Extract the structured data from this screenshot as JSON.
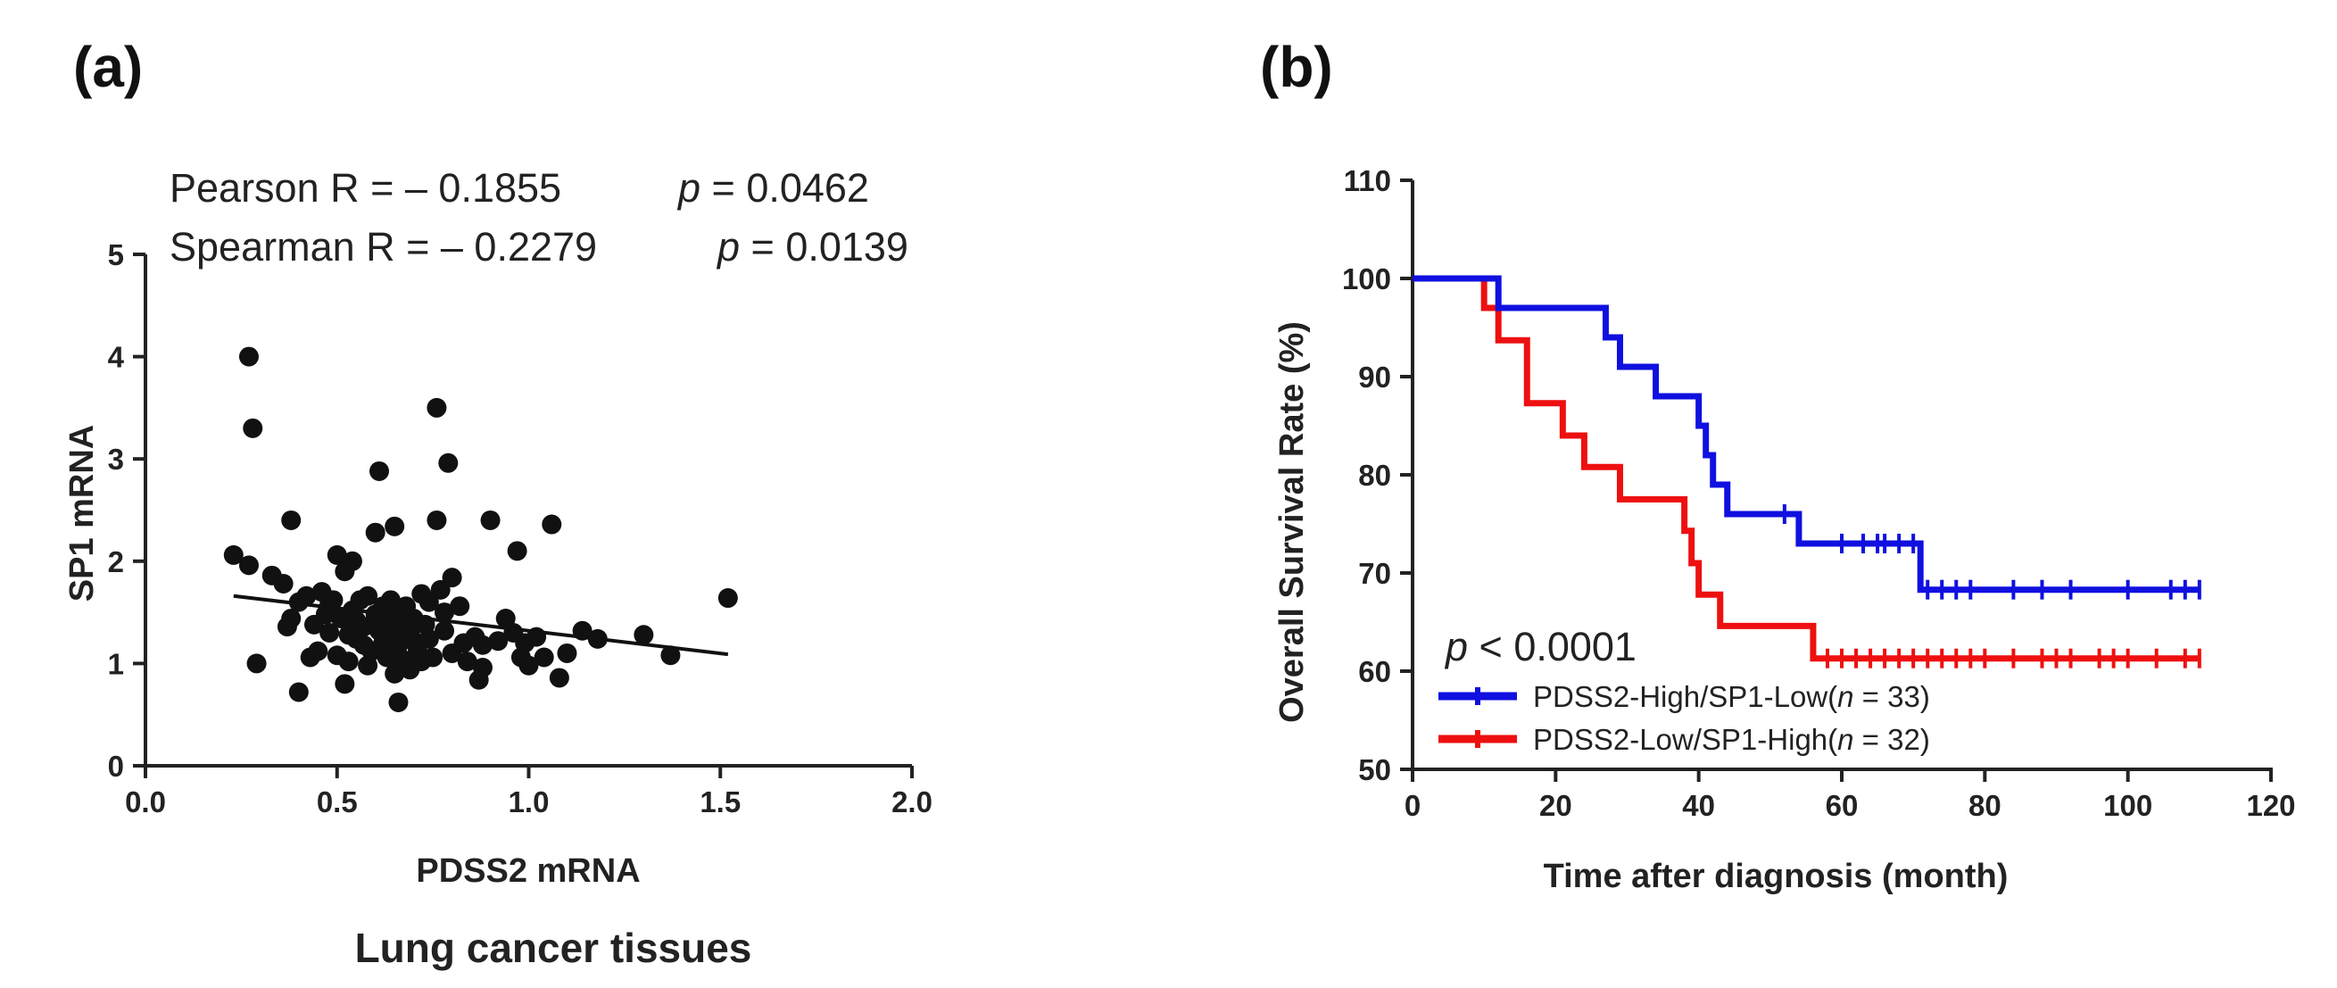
{
  "chart_data": [
    {
      "panel_label": "(a)",
      "type": "scatter",
      "xlabel": "PDSS2 mRNA",
      "ylabel": "SP1 mRNA",
      "caption": "Lung cancer tissues",
      "xlim": [
        0.0,
        2.0
      ],
      "ylim": [
        0,
        5
      ],
      "x_ticks": [
        "0.0",
        "0.5",
        "1.0",
        "1.5",
        "2.0"
      ],
      "y_ticks": [
        "0",
        "1",
        "2",
        "3",
        "4",
        "5"
      ],
      "stats": {
        "pearson_label": "Pearson R = –  0.1855",
        "pearson_p_symbol": "p",
        "pearson_p_value": " = 0.0462",
        "spearman_label": "Spearman R = –  0.2279",
        "spearman_p_symbol": "p",
        "spearman_p_value": " = 0.0139"
      },
      "regression": {
        "x": [
          0.23,
          1.52
        ],
        "y": [
          1.66,
          1.09
        ]
      },
      "points": [
        [
          0.27,
          4.0
        ],
        [
          0.28,
          3.3
        ],
        [
          0.23,
          2.06
        ],
        [
          0.27,
          1.96
        ],
        [
          0.29,
          1.0
        ],
        [
          0.33,
          1.86
        ],
        [
          0.36,
          1.78
        ],
        [
          0.38,
          2.4
        ],
        [
          0.37,
          1.36
        ],
        [
          0.38,
          1.44
        ],
        [
          0.4,
          1.6
        ],
        [
          0.4,
          0.72
        ],
        [
          0.42,
          1.66
        ],
        [
          0.43,
          1.06
        ],
        [
          0.44,
          1.38
        ],
        [
          0.45,
          1.12
        ],
        [
          0.46,
          1.7
        ],
        [
          0.47,
          1.48
        ],
        [
          0.48,
          1.3
        ],
        [
          0.48,
          1.58
        ],
        [
          0.49,
          1.62
        ],
        [
          0.5,
          1.08
        ],
        [
          0.5,
          2.06
        ],
        [
          0.51,
          1.44
        ],
        [
          0.52,
          1.9
        ],
        [
          0.52,
          0.8
        ],
        [
          0.53,
          1.28
        ],
        [
          0.53,
          1.02
        ],
        [
          0.54,
          2.0
        ],
        [
          0.54,
          1.52
        ],
        [
          0.55,
          1.24
        ],
        [
          0.55,
          1.42
        ],
        [
          0.56,
          1.62
        ],
        [
          0.57,
          1.18
        ],
        [
          0.57,
          1.36
        ],
        [
          0.58,
          1.66
        ],
        [
          0.58,
          0.98
        ],
        [
          0.59,
          1.12
        ],
        [
          0.6,
          1.48
        ],
        [
          0.6,
          2.28
        ],
        [
          0.61,
          1.32
        ],
        [
          0.61,
          2.88
        ],
        [
          0.62,
          1.56
        ],
        [
          0.62,
          1.2
        ],
        [
          0.63,
          1.06
        ],
        [
          0.63,
          1.4
        ],
        [
          0.64,
          1.26
        ],
        [
          0.64,
          1.62
        ],
        [
          0.65,
          2.34
        ],
        [
          0.65,
          0.9
        ],
        [
          0.66,
          1.46
        ],
        [
          0.66,
          1.18
        ],
        [
          0.66,
          0.62
        ],
        [
          0.67,
          1.36
        ],
        [
          0.67,
          1.04
        ],
        [
          0.68,
          1.56
        ],
        [
          0.69,
          1.3
        ],
        [
          0.69,
          0.94
        ],
        [
          0.7,
          1.22
        ],
        [
          0.7,
          1.44
        ],
        [
          0.71,
          1.12
        ],
        [
          0.72,
          1.68
        ],
        [
          0.72,
          1.02
        ],
        [
          0.73,
          1.38
        ],
        [
          0.74,
          1.6
        ],
        [
          0.74,
          1.24
        ],
        [
          0.75,
          1.06
        ],
        [
          0.76,
          2.4
        ],
        [
          0.76,
          3.5
        ],
        [
          0.77,
          1.72
        ],
        [
          0.78,
          1.5
        ],
        [
          0.78,
          1.32
        ],
        [
          0.79,
          2.96
        ],
        [
          0.8,
          1.84
        ],
        [
          0.8,
          1.1
        ],
        [
          0.82,
          1.56
        ],
        [
          0.83,
          1.2
        ],
        [
          0.84,
          1.02
        ],
        [
          0.86,
          1.26
        ],
        [
          0.87,
          0.84
        ],
        [
          0.88,
          1.18
        ],
        [
          0.88,
          0.96
        ],
        [
          0.9,
          2.4
        ],
        [
          0.92,
          1.22
        ],
        [
          0.94,
          1.44
        ],
        [
          0.96,
          1.3
        ],
        [
          0.97,
          2.1
        ],
        [
          0.98,
          1.06
        ],
        [
          0.99,
          1.2
        ],
        [
          1.0,
          0.98
        ],
        [
          1.02,
          1.26
        ],
        [
          1.04,
          1.06
        ],
        [
          1.06,
          2.36
        ],
        [
          1.08,
          0.86
        ],
        [
          1.1,
          1.1
        ],
        [
          1.14,
          1.32
        ],
        [
          1.18,
          1.24
        ],
        [
          1.3,
          1.28
        ],
        [
          1.37,
          1.08
        ],
        [
          1.52,
          1.64
        ]
      ]
    },
    {
      "panel_label": "(b)",
      "type": "line",
      "xlabel": "Time after diagnosis (month)",
      "ylabel": "Overall Survival Rate (%)",
      "xlim": [
        0,
        120
      ],
      "ylim": [
        50,
        110
      ],
      "x_ticks": [
        "0",
        "20",
        "40",
        "60",
        "80",
        "100",
        "120"
      ],
      "y_ticks": [
        "50",
        "60",
        "70",
        "80",
        "90",
        "100",
        "110"
      ],
      "p_annotation": {
        "symbol": "p",
        "value": " < 0.0001"
      },
      "series": [
        {
          "name": "PDSS2-High/SP1-Low(",
          "n_symbol": "n",
          "n_value": " = 33)",
          "color": "#1010e0",
          "steps": [
            [
              0,
              100
            ],
            [
              12,
              97
            ],
            [
              27,
              94
            ],
            [
              29,
              91
            ],
            [
              34,
              88
            ],
            [
              40,
              85
            ],
            [
              41,
              82
            ],
            [
              42,
              79
            ],
            [
              44,
              76
            ],
            [
              54,
              73
            ],
            [
              71,
              68.3
            ]
          ],
          "end_x": 110,
          "censor_x": [
            52,
            60,
            63,
            65,
            66,
            68,
            70,
            72,
            74,
            76,
            78,
            84,
            88,
            92,
            100,
            106,
            108,
            110
          ]
        },
        {
          "name": "PDSS2-Low/SP1-High(",
          "n_symbol": "n",
          "n_value": " = 32)",
          "color": "#ee1010",
          "steps": [
            [
              0,
              100
            ],
            [
              10,
              97
            ],
            [
              12,
              93.7
            ],
            [
              16,
              87.3
            ],
            [
              21,
              84
            ],
            [
              24,
              80.8
            ],
            [
              29,
              77.5
            ],
            [
              38,
              74.3
            ],
            [
              39,
              71
            ],
            [
              40,
              67.8
            ],
            [
              43,
              64.6
            ],
            [
              56,
              61.3
            ]
          ],
          "end_x": 110,
          "censor_x": [
            58,
            60,
            62,
            64,
            66,
            68,
            70,
            72,
            74,
            76,
            78,
            80,
            84,
            88,
            90,
            92,
            96,
            98,
            100,
            104,
            108,
            110
          ]
        }
      ]
    }
  ]
}
